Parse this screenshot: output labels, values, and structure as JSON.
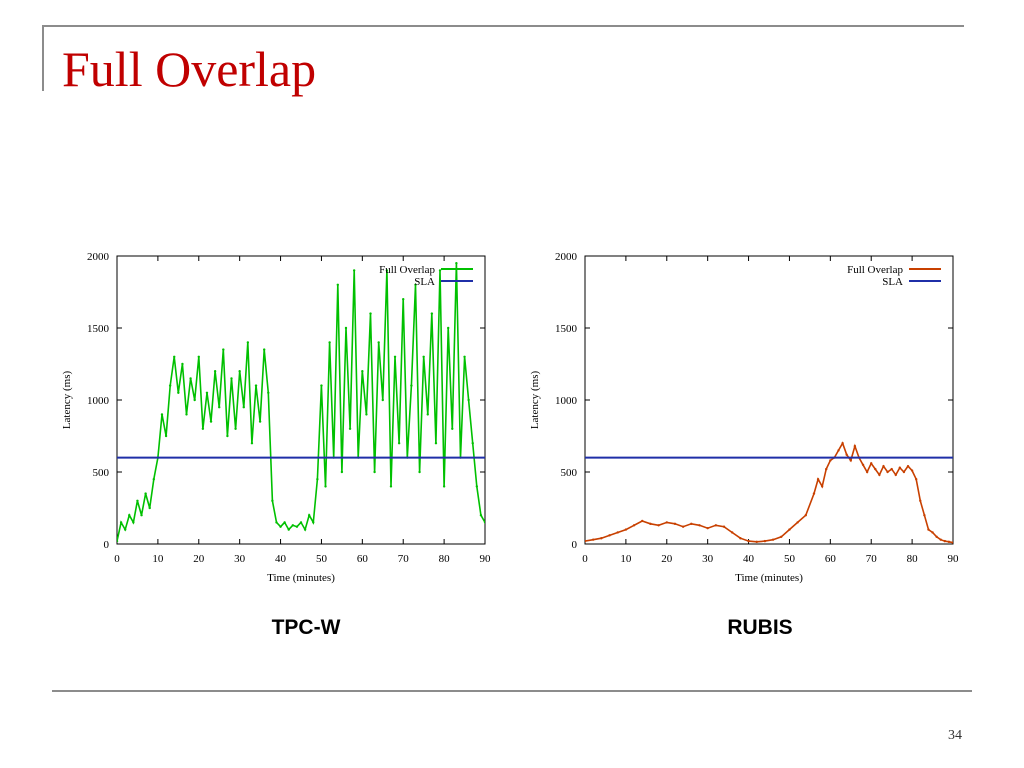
{
  "slide": {
    "title": "Full Overlap",
    "page_number": "34"
  },
  "chart_data": [
    {
      "type": "line",
      "caption": "TPC-W",
      "xlabel": "Time (minutes)",
      "ylabel": "Latency (ms)",
      "xlim": [
        0,
        90
      ],
      "ylim": [
        0,
        2000
      ],
      "xticks": [
        0,
        10,
        20,
        30,
        40,
        50,
        60,
        70,
        80,
        90
      ],
      "yticks": [
        0,
        500,
        1000,
        1500,
        2000
      ],
      "legend_position": "top-right",
      "series": [
        {
          "name": "Full Overlap",
          "color": "#00c000",
          "x": [
            0,
            1,
            2,
            3,
            4,
            5,
            6,
            7,
            8,
            9,
            10,
            11,
            12,
            13,
            14,
            15,
            16,
            17,
            18,
            19,
            20,
            21,
            22,
            23,
            24,
            25,
            26,
            27,
            28,
            29,
            30,
            31,
            32,
            33,
            34,
            35,
            36,
            37,
            38,
            39,
            40,
            41,
            42,
            43,
            44,
            45,
            46,
            47,
            48,
            49,
            50,
            51,
            52,
            53,
            54,
            55,
            56,
            57,
            58,
            59,
            60,
            61,
            62,
            63,
            64,
            65,
            66,
            67,
            68,
            69,
            70,
            71,
            72,
            73,
            74,
            75,
            76,
            77,
            78,
            79,
            80,
            81,
            82,
            83,
            84,
            85,
            86,
            87,
            88,
            89,
            90
          ],
          "values": [
            20,
            150,
            100,
            200,
            150,
            300,
            200,
            350,
            250,
            450,
            600,
            900,
            750,
            1100,
            1300,
            1050,
            1250,
            900,
            1150,
            1000,
            1300,
            800,
            1050,
            850,
            1200,
            950,
            1350,
            750,
            1150,
            800,
            1200,
            950,
            1400,
            700,
            1100,
            850,
            1350,
            1050,
            300,
            150,
            120,
            150,
            100,
            130,
            120,
            150,
            100,
            200,
            150,
            450,
            1100,
            400,
            1400,
            600,
            1800,
            500,
            1500,
            800,
            1900,
            600,
            1200,
            900,
            1600,
            500,
            1400,
            1000,
            1900,
            400,
            1300,
            700,
            1700,
            600,
            1100,
            1800,
            500,
            1300,
            900,
            1600,
            700,
            1900,
            400,
            1500,
            800,
            1950,
            600,
            1300,
            1000,
            700,
            400,
            200,
            150
          ]
        },
        {
          "name": "SLA",
          "color": "#1f2fa8",
          "x": [
            0,
            90
          ],
          "values": [
            600,
            600
          ]
        }
      ]
    },
    {
      "type": "line",
      "caption": "RUBIS",
      "xlabel": "Time (minutes)",
      "ylabel": "Latency (ms)",
      "xlim": [
        0,
        90
      ],
      "ylim": [
        0,
        2000
      ],
      "xticks": [
        0,
        10,
        20,
        30,
        40,
        50,
        60,
        70,
        80,
        90
      ],
      "yticks": [
        0,
        500,
        1000,
        1500,
        2000
      ],
      "legend_position": "top-right",
      "series": [
        {
          "name": "Full Overlap",
          "color": "#c84000",
          "x": [
            0,
            2,
            4,
            6,
            8,
            10,
            12,
            14,
            16,
            18,
            20,
            22,
            24,
            26,
            28,
            30,
            32,
            34,
            36,
            38,
            40,
            42,
            44,
            46,
            48,
            50,
            52,
            54,
            56,
            57,
            58,
            59,
            60,
            61,
            62,
            63,
            64,
            65,
            66,
            67,
            68,
            69,
            70,
            71,
            72,
            73,
            74,
            75,
            76,
            77,
            78,
            79,
            80,
            81,
            82,
            83,
            84,
            85,
            86,
            87,
            88,
            89,
            90
          ],
          "values": [
            20,
            30,
            40,
            60,
            80,
            100,
            130,
            160,
            140,
            130,
            150,
            140,
            120,
            140,
            130,
            110,
            130,
            120,
            80,
            40,
            20,
            15,
            20,
            30,
            50,
            100,
            150,
            200,
            350,
            450,
            400,
            520,
            580,
            600,
            650,
            700,
            620,
            580,
            680,
            600,
            550,
            500,
            560,
            520,
            480,
            540,
            500,
            520,
            480,
            530,
            500,
            540,
            510,
            450,
            300,
            200,
            100,
            80,
            50,
            30,
            20,
            15,
            10
          ]
        },
        {
          "name": "SLA",
          "color": "#1f2fa8",
          "x": [
            0,
            90
          ],
          "values": [
            600,
            600
          ]
        }
      ]
    }
  ]
}
